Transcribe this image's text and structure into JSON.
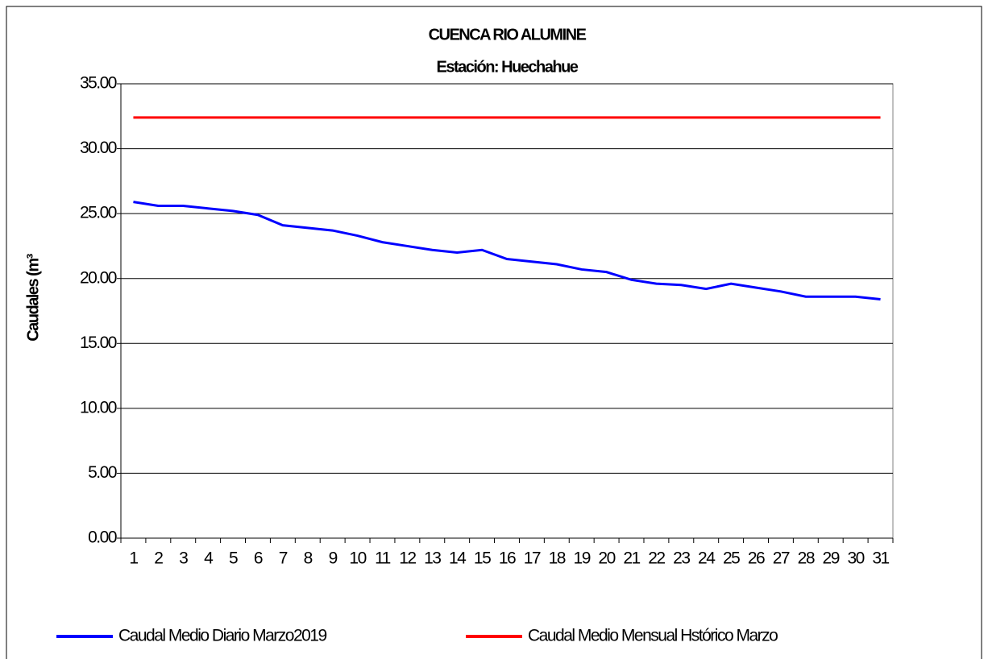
{
  "chart_data": {
    "type": "line",
    "title": "CUENCA RIO ALUMINE",
    "subtitle": "Estación: Huechahue",
    "y_label": "Caudales (m³",
    "categories": [
      "1",
      "2",
      "3",
      "4",
      "5",
      "6",
      "7",
      "8",
      "9",
      "10",
      "11",
      "12",
      "13",
      "14",
      "15",
      "16",
      "17",
      "18",
      "19",
      "20",
      "21",
      "22",
      "23",
      "24",
      "25",
      "26",
      "27",
      "28",
      "29",
      "30",
      "31"
    ],
    "series": [
      {
        "name": "Caudal Medio Diario Marzo2019",
        "color": "#0000ff",
        "values": [
          25.9,
          25.6,
          25.6,
          25.4,
          25.2,
          24.9,
          24.1,
          23.9,
          23.7,
          23.3,
          22.8,
          22.5,
          22.2,
          22.0,
          22.2,
          21.5,
          21.3,
          21.1,
          20.7,
          20.5,
          19.9,
          19.6,
          19.5,
          19.2,
          19.6,
          19.3,
          19.0,
          18.6,
          18.6,
          18.6,
          18.4
        ]
      },
      {
        "name": "Caudal Medio Mensual Hstórico Marzo",
        "color": "#ff0000",
        "values": [
          32.4,
          32.4,
          32.4,
          32.4,
          32.4,
          32.4,
          32.4,
          32.4,
          32.4,
          32.4,
          32.4,
          32.4,
          32.4,
          32.4,
          32.4,
          32.4,
          32.4,
          32.4,
          32.4,
          32.4,
          32.4,
          32.4,
          32.4,
          32.4,
          32.4,
          32.4,
          32.4,
          32.4,
          32.4,
          32.4,
          32.4
        ]
      }
    ],
    "ylim": [
      0,
      35
    ],
    "yticks": [
      {
        "value": 0,
        "label": "0.00"
      },
      {
        "value": 5,
        "label": "5.00"
      },
      {
        "value": 10,
        "label": "10.00"
      },
      {
        "value": 15,
        "label": "15.00"
      },
      {
        "value": 20,
        "label": "20.00"
      },
      {
        "value": 25,
        "label": "25.00"
      },
      {
        "value": 30,
        "label": "30.00"
      },
      {
        "value": 35,
        "label": "35.00"
      }
    ],
    "grid": true,
    "legend": "bottom"
  }
}
